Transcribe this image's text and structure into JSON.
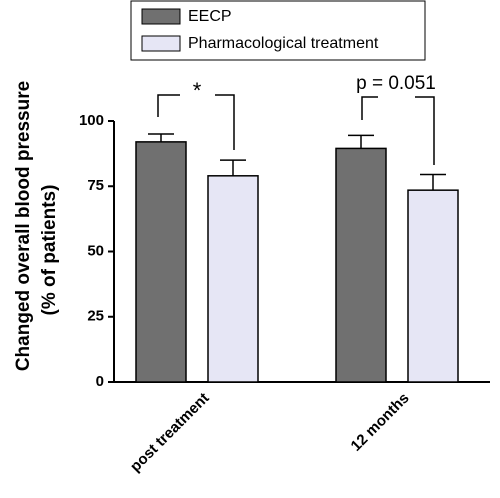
{
  "chart_data": {
    "type": "bar",
    "ylabel": [
      "Changed overall blood pressure",
      "(% of patients)"
    ],
    "categories": [
      "post treatment",
      "12 months"
    ],
    "series": [
      {
        "name": "EECP",
        "color": "#707070",
        "values": [
          92,
          89.5
        ],
        "errors": [
          3,
          5
        ]
      },
      {
        "name": "Pharmacological treatment",
        "color": "#e6e6f5",
        "values": [
          79,
          73.5
        ],
        "errors": [
          6,
          6
        ]
      }
    ],
    "annotations": [
      "*",
      "p = 0.051"
    ],
    "ylim": [
      0,
      100
    ],
    "yticks": [
      0,
      25,
      50,
      75,
      100
    ],
    "grid": false
  }
}
